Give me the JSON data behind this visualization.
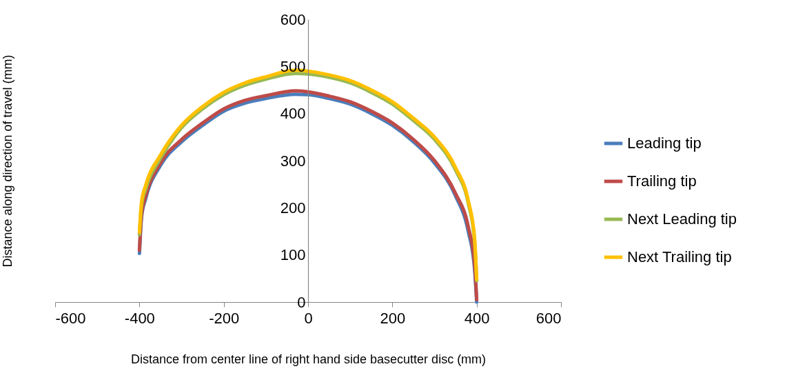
{
  "chart_data": {
    "type": "line",
    "xlabel": "Distance from center line of right hand side basecutter disc (mm)",
    "ylabel": "Distance along direction of travel (mm)",
    "xlim": [
      -600,
      600
    ],
    "xticks": [
      -600,
      -400,
      -200,
      0,
      200,
      400,
      600
    ],
    "ylim": [
      0,
      600
    ],
    "yticks": [
      0,
      100,
      200,
      300,
      400,
      500,
      600
    ],
    "grid": false,
    "legend": "right",
    "marker": "none",
    "line_style": "solid",
    "series": [
      {
        "name": "Leading tip",
        "color": "#4a7ebb",
        "x": [
          -400,
          -395,
          -385,
          -350,
          -300,
          -250,
          -200,
          -150,
          -100,
          -30,
          0,
          50,
          100,
          150,
          200,
          250,
          300,
          350,
          380,
          395,
          400
        ],
        "values": [
          103,
          180,
          220,
          290,
          340,
          375,
          405,
          422,
          432,
          441,
          440,
          432,
          420,
          400,
          375,
          340,
          295,
          225,
          150,
          70,
          0
        ]
      },
      {
        "name": "Trailing tip",
        "color": "#be4b48",
        "x": [
          -400,
          -395,
          -385,
          -350,
          -300,
          -250,
          -200,
          -150,
          -100,
          -30,
          0,
          50,
          100,
          150,
          200,
          250,
          300,
          350,
          380,
          395,
          400
        ],
        "values": [
          110,
          185,
          225,
          295,
          345,
          380,
          410,
          428,
          438,
          448,
          446,
          437,
          425,
          405,
          380,
          345,
          300,
          230,
          160,
          80,
          5
        ]
      },
      {
        "name": "Next Leading tip",
        "color": "#98b954",
        "x": [
          -400,
          -395,
          -385,
          -350,
          -300,
          -250,
          -200,
          -150,
          -100,
          -30,
          0,
          50,
          100,
          150,
          200,
          250,
          300,
          350,
          380,
          395,
          400
        ],
        "values": [
          143,
          205,
          240,
          305,
          370,
          410,
          440,
          460,
          473,
          485,
          484,
          477,
          465,
          445,
          420,
          385,
          345,
          280,
          210,
          130,
          45
        ]
      },
      {
        "name": "Next Trailing tip",
        "color": "#ffc000",
        "x": [
          -400,
          -395,
          -385,
          -350,
          -300,
          -250,
          -200,
          -150,
          -100,
          -30,
          0,
          50,
          100,
          150,
          200,
          250,
          300,
          350,
          380,
          395,
          400
        ],
        "values": [
          148,
          212,
          248,
          312,
          375,
          415,
          445,
          465,
          478,
          492,
          490,
          482,
          470,
          450,
          425,
          390,
          350,
          285,
          215,
          135,
          48
        ]
      }
    ]
  }
}
